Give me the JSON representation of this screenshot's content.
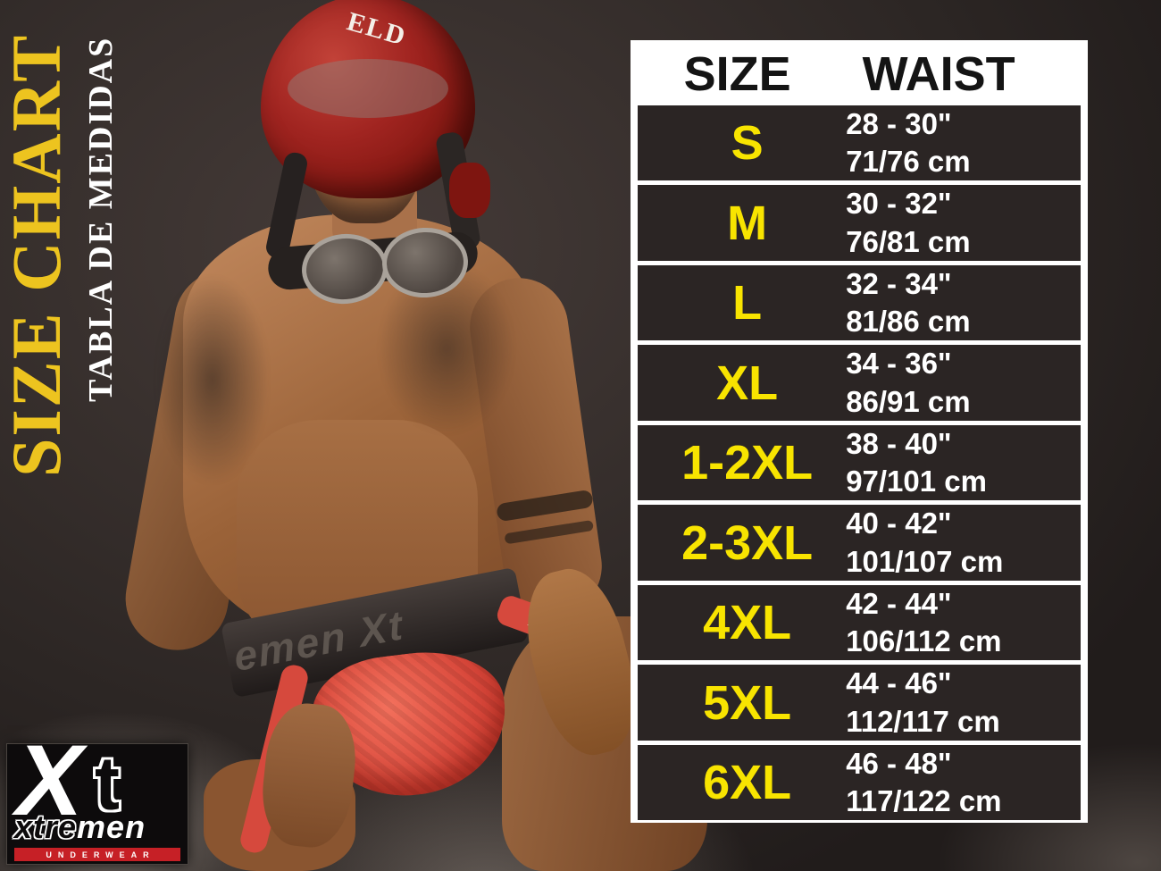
{
  "titles": {
    "main": "SIZE CHART",
    "sub": "TABLA DE MEDIDAS"
  },
  "photo": {
    "helmet_text": "ELD",
    "waistband_text": "emen Xt",
    "strap_tag": "Xt"
  },
  "logo": {
    "x": "X",
    "t": "t",
    "brand_outline": "xtre",
    "brand_solid": "men",
    "tagline": "UNDERWEAR"
  },
  "table": {
    "headers": {
      "size": "SIZE",
      "waist": "WAIST"
    },
    "rows": [
      {
        "size": "S",
        "inches": "28 - 30\"",
        "cm": "71/76 cm"
      },
      {
        "size": "M",
        "inches": "30 - 32\"",
        "cm": "76/81 cm"
      },
      {
        "size": "L",
        "inches": "32 - 34\"",
        "cm": "81/86 cm"
      },
      {
        "size": "XL",
        "inches": "34 - 36\"",
        "cm": "86/91 cm"
      },
      {
        "size": "1-2XL",
        "inches": "38 - 40\"",
        "cm": "97/101 cm"
      },
      {
        "size": "2-3XL",
        "inches": "40 - 42\"",
        "cm": "101/107 cm"
      },
      {
        "size": "4XL",
        "inches": "42 - 44\"",
        "cm": "106/112 cm"
      },
      {
        "size": "5XL",
        "inches": "44 - 46\"",
        "cm": "112/117 cm"
      },
      {
        "size": "6XL",
        "inches": "46 - 48\"",
        "cm": "117/122 cm"
      }
    ]
  },
  "chart_data": {
    "type": "table",
    "title": "SIZE CHART",
    "subtitle": "TABLA DE MEDIDAS",
    "columns": [
      "SIZE",
      "WAIST"
    ],
    "rows": [
      [
        "S",
        "28 - 30\"",
        "71/76 cm"
      ],
      [
        "M",
        "30 - 32\"",
        "76/81 cm"
      ],
      [
        "L",
        "32 - 34\"",
        "81/86 cm"
      ],
      [
        "XL",
        "34 - 36\"",
        "86/91 cm"
      ],
      [
        "1-2XL",
        "38 - 40\"",
        "97/101 cm"
      ],
      [
        "2-3XL",
        "40 - 42\"",
        "101/107 cm"
      ],
      [
        "4XL",
        "42 - 44\"",
        "106/112 cm"
      ],
      [
        "5XL",
        "44 - 46\"",
        "112/117 cm"
      ],
      [
        "6XL",
        "46 - 48\"",
        "117/122 cm"
      ]
    ]
  },
  "colors": {
    "accent_yellow": "#f8e400",
    "title_gold": "#edc41f",
    "table_row_bg": "#2b2524",
    "table_border": "#ffffff",
    "header_text": "#141414",
    "waist_text": "#ffffff",
    "helmet_red": "#9e1c18",
    "underwear_red": "#d6493d",
    "logo_bar_red": "#c62026",
    "background": "#2e2827"
  }
}
